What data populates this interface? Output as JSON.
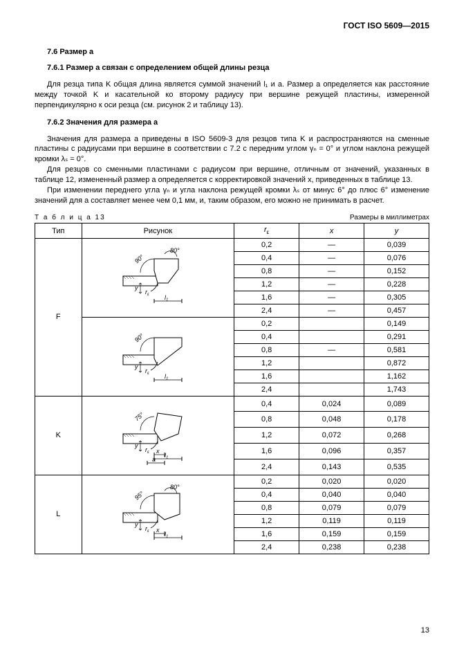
{
  "doc_header": "ГОСТ ISO 5609—2015",
  "sec76": "7.6 Размер a",
  "sec761_title": "7.6.1 Размер a связан с определением общей длины резца",
  "p1": "Для резца типа K общая длина является суммой значений l₁ и a. Размер a определяется как расстояние между точкой K и касательной ко второму радиусу при вершине режущей пластины, измеренной перпендикулярно к оси резца (см. рисунок 2 и таблицу 13).",
  "sec762_title": "7.6.2 Значения для размера a",
  "p2": "Значения для размера a приведены в ISO 5609-3 для резцов типа K и распространяются на сменные пластины с радиусами при вершине в соответствии с 7.2 с передним углом γₙ = 0° и углом наклона режущей кромки λₛ = 0°.",
  "p3": "Для резцов со сменными пластинами с радиусом при вершине, отличным от значений, указанных в таблице 12, измененный размер a определяется с корректировкой значений x, приведенных в таблице 13.",
  "p4": "При изменении переднего угла γₙ и угла наклона режущей кромки λₛ от минус 6° до плюс 6° изменение значений для a составляет менее чем 0,1 мм, и, таким образом, его можно не принимать в расчет.",
  "table_caption": "Т а б л и ц а   13",
  "table_units": "Размеры в миллиметрах",
  "cols": {
    "c1": "Тип",
    "c2": "Рисунок",
    "c3": "rε",
    "c4": "x",
    "c5": "y"
  },
  "types": {
    "F": "F",
    "K": "K",
    "L": "L"
  },
  "angles": {
    "a80": "80°",
    "a90": "90°",
    "a75": "75°",
    "a95": "95°"
  },
  "dims": {
    "re": "rε",
    "l1": "l₁",
    "x": "x",
    "y": "y",
    "a": "a"
  },
  "rows": {
    "F1": [
      {
        "r": "0,2",
        "x": "—",
        "y": "0,039"
      },
      {
        "r": "0,4",
        "x": "—",
        "y": "0,076"
      },
      {
        "r": "0,8",
        "x": "—",
        "y": "0,152"
      },
      {
        "r": "1,2",
        "x": "—",
        "y": "0,228"
      },
      {
        "r": "1,6",
        "x": "—",
        "y": "0,305"
      },
      {
        "r": "2,4",
        "x": "—",
        "y": "0,457"
      }
    ],
    "F2": [
      {
        "r": "0,2",
        "x": "",
        "y": "0,149"
      },
      {
        "r": "0,4",
        "x": "",
        "y": "0,291"
      },
      {
        "r": "0,8",
        "x": "—",
        "y": "0,581"
      },
      {
        "r": "1,2",
        "x": "",
        "y": "0,872"
      },
      {
        "r": "1,6",
        "x": "",
        "y": "1,162"
      },
      {
        "r": "2,4",
        "x": "",
        "y": "1,743"
      }
    ],
    "K": [
      {
        "r": "0,4",
        "x": "0,024",
        "y": "0,089"
      },
      {
        "r": "0,8",
        "x": "0,048",
        "y": "0,178"
      },
      {
        "r": "1,2",
        "x": "0,072",
        "y": "0,268"
      },
      {
        "r": "1,6",
        "x": "0,096",
        "y": "0,357"
      },
      {
        "r": "2,4",
        "x": "0,143",
        "y": "0,535"
      }
    ],
    "L": [
      {
        "r": "0,2",
        "x": "0,020",
        "y": "0,020"
      },
      {
        "r": "0,4",
        "x": "0,040",
        "y": "0,040"
      },
      {
        "r": "0,8",
        "x": "0,079",
        "y": "0,079"
      },
      {
        "r": "1,2",
        "x": "0,119",
        "y": "0,119"
      },
      {
        "r": "1,6",
        "x": "0,159",
        "y": "0,159"
      },
      {
        "r": "2,4",
        "x": "0,238",
        "y": "0,238"
      }
    ]
  },
  "page_num": "13",
  "svg": {
    "stroke": "#000",
    "hatch": "#000",
    "text": "#000"
  }
}
